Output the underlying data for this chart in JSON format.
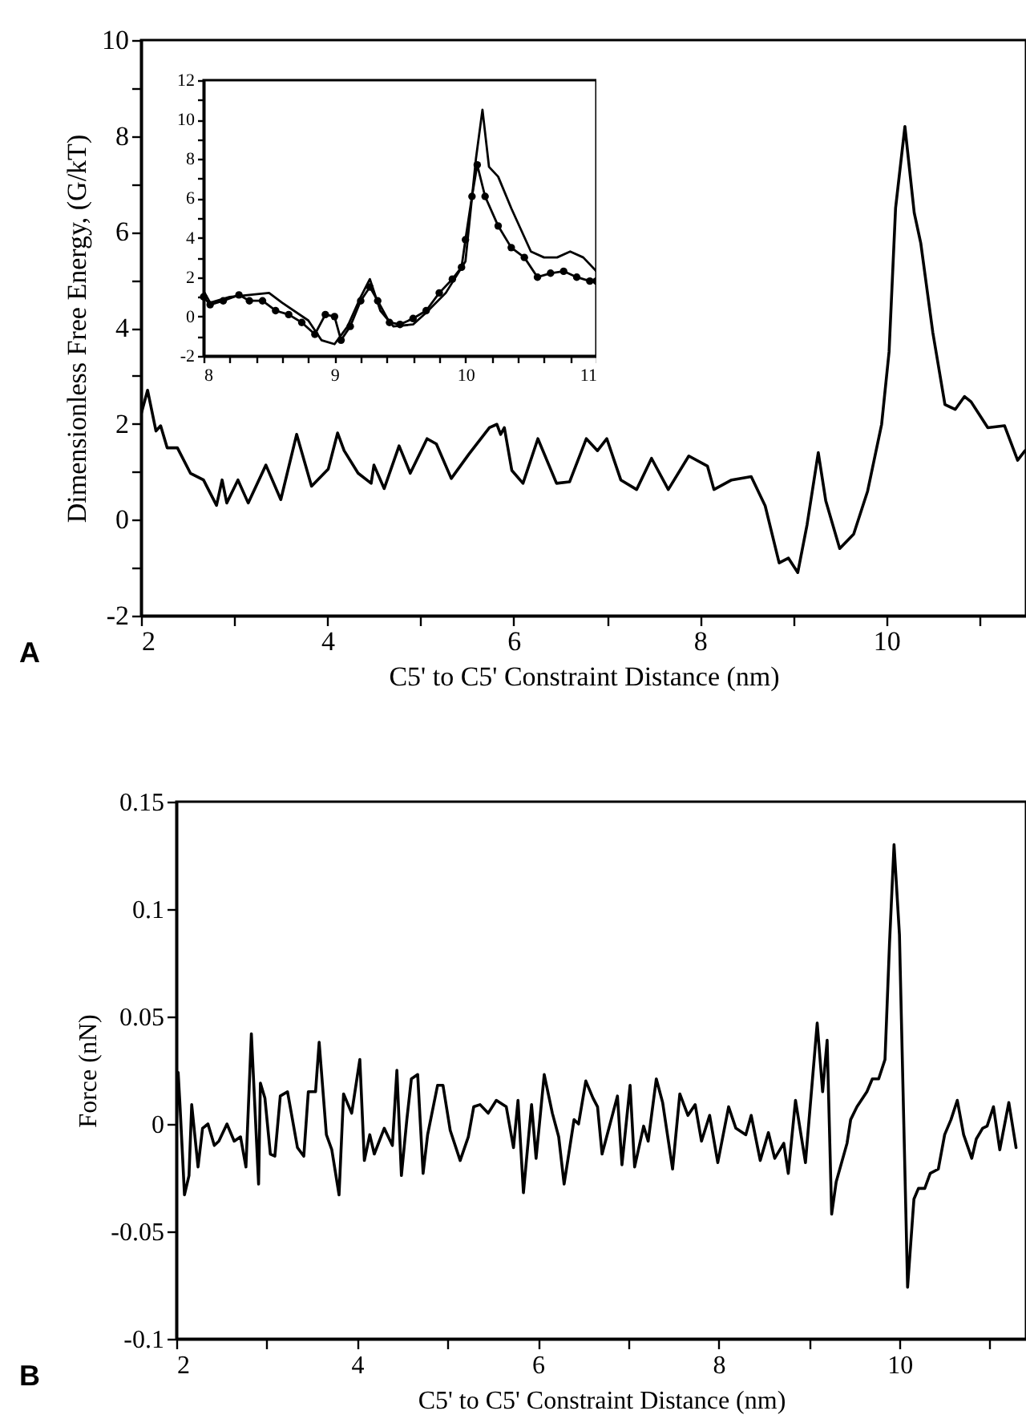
{
  "chart_data": [
    {
      "type": "line",
      "ylabel": "Dimensionless Free Energy, (G/kT)",
      "xlabel": "C5' to C5' Constraint Distance (nm)",
      "annotations": [
        "A"
      ],
      "xlim": [
        2,
        11.5
      ],
      "ylim": [
        -2,
        10
      ],
      "xticks": [
        2,
        {
          "value": 3,
          "label": null
        },
        4,
        {
          "value": 5,
          "label": null
        },
        6,
        {
          "value": 7,
          "label": null
        },
        8,
        {
          "value": 9,
          "label": null
        },
        10,
        {
          "value": 11,
          "label": null
        }
      ],
      "yticks": [
        -2,
        {
          "value": -1,
          "label": null
        },
        0,
        {
          "value": 1,
          "label": null
        },
        2,
        {
          "value": 3,
          "label": null
        },
        4,
        {
          "value": 5,
          "label": null
        },
        6,
        {
          "value": 7,
          "label": null
        },
        8,
        {
          "value": 9,
          "label": null
        },
        10
      ],
      "series": [
        {
          "color": "#000000",
          "x": [
            2,
            2.07,
            2.16,
            2.21,
            2.28,
            2.39,
            2.53,
            2.67,
            2.81,
            2.87,
            2.92,
            3.04,
            3.15,
            3.34,
            3.5,
            3.67,
            3.83,
            4.01,
            4.11,
            4.18,
            4.33,
            4.47,
            4.5,
            4.61,
            4.77,
            4.89,
            5.07,
            5.17,
            5.33,
            5.52,
            5.74,
            5.82,
            5.86,
            5.9,
            5.98,
            6.1,
            6.26,
            6.46,
            6.6,
            6.78,
            6.9,
            7.0,
            7.15,
            7.32,
            7.48,
            7.66,
            7.88,
            8.08,
            8.15,
            8.34,
            8.55,
            8.7,
            8.85,
            8.95,
            9.05,
            9.15,
            9.27,
            9.35,
            9.5,
            9.65,
            9.8,
            9.95,
            10.03,
            10.1,
            10.2,
            10.3,
            10.37,
            10.5,
            10.63,
            10.74,
            10.84,
            10.91,
            11.09,
            11.27,
            11.41,
            11.49
          ],
          "values": [
            2.2,
            2.7,
            1.85,
            1.96,
            1.5,
            1.5,
            0.97,
            0.83,
            0.3,
            0.83,
            0.35,
            0.83,
            0.35,
            1.14,
            0.42,
            1.78,
            0.7,
            1.06,
            1.81,
            1.44,
            0.97,
            0.76,
            1.14,
            0.65,
            1.54,
            0.97,
            1.69,
            1.58,
            0.86,
            1.37,
            1.92,
            1.99,
            1.78,
            1.92,
            1.03,
            0.76,
            1.69,
            0.76,
            0.79,
            1.69,
            1.44,
            1.69,
            0.83,
            0.63,
            1.28,
            0.63,
            1.33,
            1.12,
            0.63,
            0.83,
            0.9,
            0.29,
            -0.9,
            -0.8,
            -1.1,
            -0.1,
            1.4,
            0.4,
            -0.6,
            -0.3,
            0.6,
            1.99,
            3.5,
            6.5,
            8.2,
            6.4,
            5.77,
            3.9,
            2.4,
            2.3,
            2.57,
            2.46,
            1.92,
            1.96,
            1.24,
            1.44
          ]
        }
      ]
    },
    {
      "type": "line",
      "xlim": [
        8,
        11
      ],
      "ylim": [
        -2,
        12
      ],
      "xticks": [
        8,
        {
          "value": 8.2,
          "label": null
        },
        {
          "value": 8.4,
          "label": null
        },
        {
          "value": 8.6,
          "label": null
        },
        {
          "value": 8.8,
          "label": null
        },
        9,
        {
          "value": 9.2,
          "label": null
        },
        {
          "value": 9.4,
          "label": null
        },
        {
          "value": 9.6,
          "label": null
        },
        {
          "value": 9.8,
          "label": null
        },
        10,
        {
          "value": 10.2,
          "label": null
        },
        {
          "value": 10.4,
          "label": null
        },
        {
          "value": 10.6,
          "label": null
        },
        {
          "value": 10.8,
          "label": null
        },
        11
      ],
      "yticks": [
        -2,
        {
          "value": -1,
          "label": null
        },
        0,
        {
          "value": 1,
          "label": null
        },
        2,
        {
          "value": 3,
          "label": null
        },
        4,
        {
          "value": 5,
          "label": null
        },
        6,
        {
          "value": 7,
          "label": null
        },
        8,
        {
          "value": 9,
          "label": null
        },
        10,
        {
          "value": 11,
          "label": null
        },
        12
      ],
      "series": [
        {
          "color": "#000000",
          "x": [
            8.0,
            8.05,
            8.2,
            8.5,
            8.6,
            8.8,
            8.9,
            9.0,
            9.1,
            9.2,
            9.27,
            9.35,
            9.45,
            9.6,
            9.7,
            9.85,
            10.0,
            10.08,
            10.13,
            10.18,
            10.25,
            10.35,
            10.5,
            10.6,
            10.7,
            10.8,
            10.9,
            11.0
          ],
          "values": [
            1.3,
            0.7,
            1.0,
            1.2,
            0.7,
            -0.2,
            -1.2,
            -1.4,
            -0.5,
            1.0,
            1.9,
            0.3,
            -0.5,
            -0.4,
            0.2,
            1.2,
            2.8,
            8.0,
            10.5,
            7.6,
            7.1,
            5.5,
            3.3,
            3.0,
            3.0,
            3.3,
            3.0,
            2.3
          ]
        },
        {
          "color": "#000000",
          "marker": "circle",
          "x": [
            8.0,
            8.05,
            8.15,
            8.27,
            8.35,
            8.45,
            8.55,
            8.65,
            8.75,
            8.85,
            8.93,
            9.0,
            9.05,
            9.12,
            9.2,
            9.27,
            9.33,
            9.42,
            9.5,
            9.6,
            9.7,
            9.8,
            9.9,
            9.97,
            10.0,
            10.05,
            10.09,
            10.15,
            10.25,
            10.35,
            10.45,
            10.55,
            10.65,
            10.75,
            10.85,
            10.95,
            11.0
          ],
          "values": [
            1.0,
            0.6,
            0.8,
            1.1,
            0.8,
            0.8,
            0.3,
            0.1,
            -0.3,
            -0.9,
            0.1,
            0,
            -1.2,
            -0.5,
            0.8,
            1.5,
            0.8,
            -0.3,
            -0.4,
            -0.1,
            0.3,
            1.2,
            1.9,
            2.5,
            3.9,
            6.1,
            7.7,
            6.1,
            4.6,
            3.5,
            3.0,
            2.0,
            2.2,
            2.3,
            2.0,
            1.8,
            1.8
          ]
        }
      ]
    },
    {
      "type": "line",
      "ylabel": "Force (nN)",
      "xlabel": "C5' to C5' Constraint Distance (nm)",
      "annotations": [
        "B"
      ],
      "xlim": [
        2,
        11.4
      ],
      "ylim": [
        -0.1,
        0.15
      ],
      "xticks": [
        2,
        {
          "value": 3,
          "label": null
        },
        4,
        {
          "value": 5,
          "label": null
        },
        6,
        {
          "value": 7,
          "label": null
        },
        8,
        {
          "value": 9,
          "label": null
        },
        10,
        {
          "value": 11,
          "label": null
        }
      ],
      "yticks": [
        -0.1,
        -0.05,
        0,
        0.05,
        0.1,
        0.15
      ],
      "series": [
        {
          "color": "#000000",
          "x": [
            2.0,
            2.02,
            2.04,
            2.09,
            2.14,
            2.17,
            2.24,
            2.29,
            2.35,
            2.42,
            2.47,
            2.56,
            2.64,
            2.71,
            2.77,
            2.83,
            2.91,
            2.93,
            2.98,
            3.04,
            3.09,
            3.15,
            3.23,
            3.34,
            3.41,
            3.46,
            3.54,
            3.58,
            3.66,
            3.72,
            3.8,
            3.85,
            3.94,
            4.03,
            4.08,
            4.14,
            4.19,
            4.3,
            4.39,
            4.44,
            4.49,
            4.55,
            4.6,
            4.67,
            4.73,
            4.78,
            4.89,
            4.95,
            5.03,
            5.14,
            5.23,
            5.29,
            5.36,
            5.45,
            5.54,
            5.65,
            5.73,
            5.78,
            5.84,
            5.93,
            5.98,
            6.07,
            6.16,
            6.23,
            6.29,
            6.4,
            6.45,
            6.53,
            6.61,
            6.66,
            6.71,
            6.88,
            6.93,
            7.02,
            7.07,
            7.17,
            7.22,
            7.31,
            7.38,
            7.49,
            7.57,
            7.66,
            7.74,
            7.81,
            7.9,
            7.99,
            8.11,
            8.19,
            8.3,
            8.36,
            8.46,
            8.55,
            8.62,
            8.72,
            8.77,
            8.85,
            8.96,
            9.09,
            9.15,
            9.2,
            9.25,
            9.3,
            9.42,
            9.46,
            9.53,
            9.64,
            9.7,
            9.77,
            9.84,
            9.89,
            9.94,
            10.0,
            10.09,
            10.16,
            10.21,
            10.28,
            10.34,
            10.43,
            10.5,
            10.57,
            10.64,
            10.71,
            10.8,
            10.85,
            10.92,
            10.97,
            11.04,
            11.11,
            11.21,
            11.29
          ],
          "values": [
            0,
            0.024,
            0.009,
            -0.033,
            -0.024,
            0.009,
            -0.02,
            -0.002,
            0,
            -0.01,
            -0.008,
            0,
            -0.008,
            -0.006,
            -0.02,
            0.042,
            -0.028,
            0.019,
            0.012,
            -0.014,
            -0.015,
            0.013,
            0.015,
            -0.011,
            -0.015,
            0.015,
            0.015,
            0.038,
            -0.005,
            -0.012,
            -0.033,
            0.014,
            0.005,
            0.03,
            -0.017,
            -0.005,
            -0.014,
            -0.002,
            -0.01,
            0.025,
            -0.024,
            0.002,
            0.021,
            0.023,
            -0.023,
            -0.005,
            0.018,
            0.018,
            -0.003,
            -0.017,
            -0.006,
            0.008,
            0.009,
            0.005,
            0.011,
            0.008,
            -0.011,
            0.011,
            -0.032,
            0.009,
            -0.016,
            0.023,
            0.005,
            -0.006,
            -0.028,
            0.002,
            0,
            0.02,
            0.012,
            0.008,
            -0.014,
            0.013,
            -0.019,
            0.018,
            -0.02,
            -0.001,
            -0.008,
            0.021,
            0.01,
            -0.021,
            0.014,
            0.004,
            0.009,
            -0.008,
            0.004,
            -0.018,
            0.008,
            -0.002,
            -0.005,
            0.004,
            -0.017,
            -0.004,
            -0.016,
            -0.009,
            -0.023,
            0.011,
            -0.018,
            0.047,
            0.015,
            0.039,
            -0.042,
            -0.027,
            -0.009,
            0.002,
            0.008,
            0.015,
            0.021,
            0.021,
            0.03,
            0.084,
            0.13,
            0.088,
            -0.076,
            -0.035,
            -0.03,
            -0.03,
            -0.023,
            -0.021,
            -0.005,
            0.002,
            0.011,
            -0.005,
            -0.016,
            -0.007,
            -0.002,
            -0.001,
            0.008,
            -0.012,
            0.01,
            -0.011
          ]
        }
      ]
    }
  ]
}
